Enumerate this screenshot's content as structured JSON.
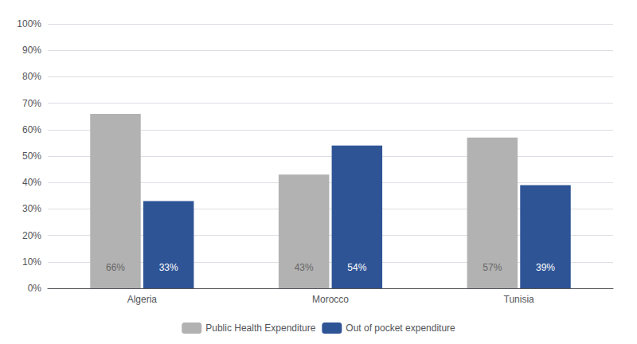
{
  "chart_data": {
    "type": "bar",
    "categories": [
      "Algeria",
      "Morocco",
      "Tunisia"
    ],
    "series": [
      {
        "name": "Public Health Expenditure",
        "color": "#b2b2b2",
        "values": [
          0.66,
          0.43,
          0.57
        ],
        "value_labels": [
          "66%",
          "43%",
          "57%"
        ]
      },
      {
        "name": "Out of pocket expenditure",
        "color": "#2e5496",
        "values": [
          0.33,
          0.54,
          0.39
        ],
        "value_labels": [
          "33%",
          "54%",
          "39%"
        ]
      }
    ],
    "ylim": [
      0,
      1.0
    ],
    "yticks": [
      {
        "value": 0,
        "label": "0%"
      },
      {
        "value": 0.1,
        "label": "10%"
      },
      {
        "value": 0.2,
        "label": "20%"
      },
      {
        "value": 0.3,
        "label": "30%"
      },
      {
        "value": 0.4,
        "label": "40%"
      },
      {
        "value": 0.5,
        "label": "50%"
      },
      {
        "value": 0.6,
        "label": "60%"
      },
      {
        "value": 0.7,
        "label": "70%"
      },
      {
        "value": 0.8,
        "label": "80%"
      },
      {
        "value": 0.9,
        "label": "90%"
      },
      {
        "value": 1.0,
        "label": "100%"
      }
    ],
    "grid": true,
    "legend": "bottom",
    "data_labels": true
  }
}
